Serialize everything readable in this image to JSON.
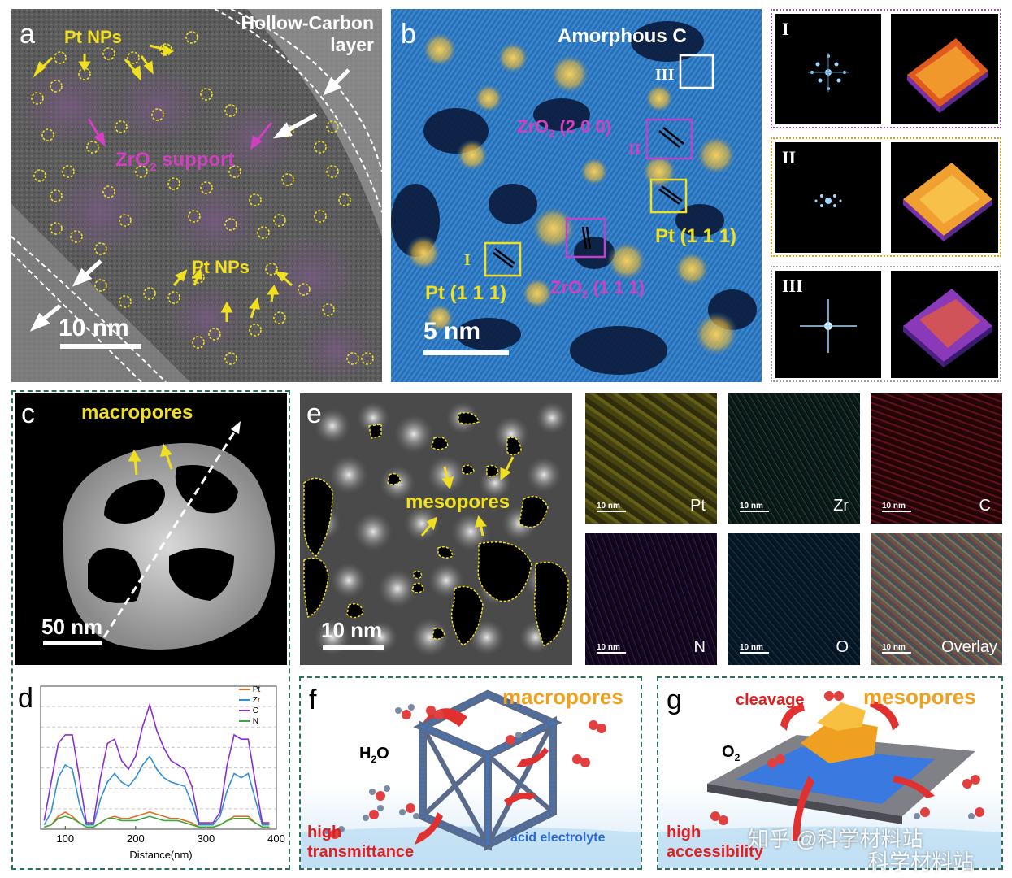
{
  "panel_a": {
    "letter": "a",
    "pt_nps_top": "Pt NPs",
    "pt_nps_bottom": "Pt NPs",
    "zro2_support": "ZrO",
    "zro2_support_sub": "2",
    "zro2_support_tail": " support",
    "hollow_carbon_line1": "Hollow-Carbon",
    "hollow_carbon_line2": "layer",
    "scale": "10 nm"
  },
  "panel_b": {
    "letter": "b",
    "amorphous": "Amorphous C",
    "roman3": "III",
    "roman2": "II",
    "roman1": "I",
    "zro2_200": "ZrO",
    "zro2_200_sub": "2",
    "zro2_200_tail": " (2 0 0)",
    "zro2_111": "ZrO",
    "zro2_111_sub": "2",
    "zro2_111_tail": " (1 1 1)",
    "pt111_right": "Pt (1 1 1)",
    "pt111_left": "Pt (1 1 1)",
    "scale": "5 nm"
  },
  "fft": {
    "labels": [
      "I",
      "II",
      "III"
    ]
  },
  "panel_c": {
    "letter": "c",
    "macropores": "macropores",
    "scale": "50 nm"
  },
  "panel_e": {
    "letter": "e",
    "mesopores": "mesopores",
    "scale": "10 nm"
  },
  "eds": {
    "scale": "10 nm",
    "maps": [
      {
        "element": "Pt",
        "color": "#c8c03a"
      },
      {
        "element": "Zr",
        "color": "#3fa6a0"
      },
      {
        "element": "C",
        "color": "#b02038"
      },
      {
        "element": "N",
        "color": "#7a2fa8"
      },
      {
        "element": "O",
        "color": "#2f7ab8"
      },
      {
        "element": "Overlay",
        "color": "#9a8a78"
      }
    ]
  },
  "panel_d": {
    "letter": "d",
    "xlabel": "Distance(nm)",
    "legend": [
      "Pt",
      "Zr",
      "C",
      "N"
    ]
  },
  "chart_data": {
    "type": "line",
    "xlabel": "Distance(nm)",
    "ylabel": "",
    "xlim": [
      65,
      400
    ],
    "xticks": [
      100,
      200,
      300,
      400
    ],
    "legend_position": "top-right",
    "grid": true,
    "colors": {
      "Pt": "#e07020",
      "Zr": "#2f8fd8",
      "C": "#8a2fd0",
      "N": "#3aa83a"
    },
    "x": [
      70,
      80,
      90,
      100,
      110,
      120,
      130,
      140,
      150,
      160,
      170,
      180,
      190,
      200,
      210,
      220,
      230,
      240,
      250,
      260,
      270,
      280,
      290,
      300,
      310,
      320,
      330,
      340,
      350,
      360,
      370,
      380,
      390
    ],
    "series": [
      {
        "name": "Pt",
        "values": [
          1,
          2,
          6,
          8,
          6,
          3,
          1,
          1,
          3,
          5,
          6,
          5,
          5,
          6,
          7,
          8,
          7,
          6,
          5,
          5,
          4,
          3,
          1,
          1,
          1,
          2,
          4,
          6,
          6,
          6,
          3,
          1,
          1
        ]
      },
      {
        "name": "Zr",
        "values": [
          2,
          8,
          24,
          30,
          28,
          12,
          2,
          2,
          14,
          22,
          26,
          22,
          20,
          24,
          30,
          34,
          28,
          24,
          22,
          21,
          20,
          12,
          2,
          2,
          2,
          6,
          18,
          26,
          24,
          26,
          14,
          2,
          2
        ]
      },
      {
        "name": "C",
        "values": [
          4,
          22,
          40,
          44,
          44,
          24,
          3,
          3,
          24,
          40,
          42,
          32,
          28,
          34,
          48,
          58,
          46,
          38,
          32,
          30,
          28,
          20,
          3,
          3,
          3,
          8,
          30,
          44,
          42,
          42,
          22,
          3,
          3
        ]
      },
      {
        "name": "N",
        "values": [
          1,
          2,
          5,
          6,
          5,
          3,
          1,
          1,
          3,
          5,
          5,
          4,
          4,
          4,
          5,
          6,
          5,
          4,
          4,
          4,
          3,
          2,
          1,
          1,
          1,
          2,
          4,
          5,
          5,
          5,
          3,
          1,
          1
        ]
      }
    ]
  },
  "panel_f": {
    "letter": "f",
    "macropores": "macropores",
    "h2o": "H",
    "h2o_sub": "2",
    "h2o_tail": "O",
    "high": "high",
    "transmittance": "transmittance",
    "acid": "acid electrolyte"
  },
  "panel_g": {
    "letter": "g",
    "cleavage": "cleavage",
    "mesopores": "mesopores",
    "o2": "O",
    "o2_sub": "2",
    "high": "high",
    "accessibility": "accessibility"
  },
  "watermark": {
    "line1": "知乎 @科学材料站",
    "line2": "科学材料站"
  }
}
